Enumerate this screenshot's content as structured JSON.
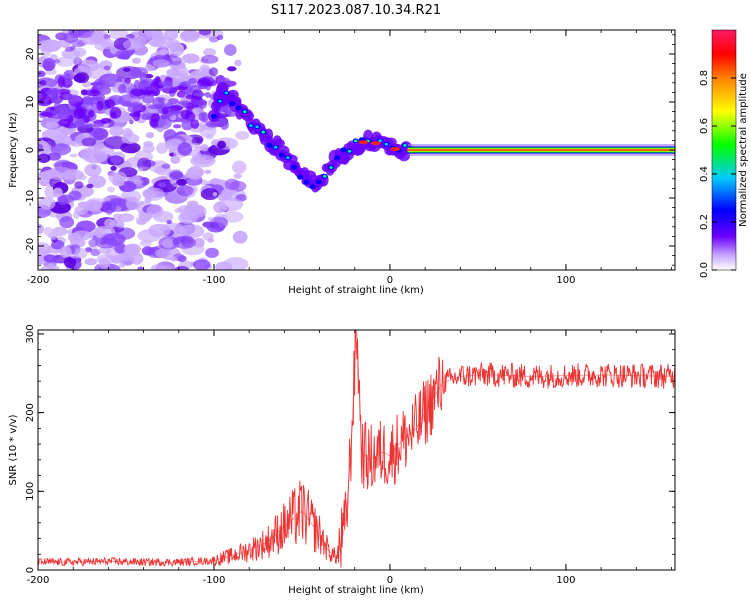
{
  "title": "S117.2023.087.10.34.R21",
  "chart_data": [
    {
      "type": "heatmap",
      "xlabel": "Height of straight line (km)",
      "ylabel": "Frequency (Hz)",
      "xlim": [
        -200,
        162
      ],
      "ylim": [
        -25,
        25
      ],
      "xticks": [
        -200,
        -100,
        0,
        100
      ],
      "yticks": [
        -20,
        -10,
        0,
        10,
        20
      ],
      "grid": false,
      "colorbar": {
        "label": "Normalized spectral amplitude",
        "range": [
          0,
          1
        ],
        "ticks": [
          "0.0",
          "0.2",
          "0.4",
          "0.6",
          "0.8"
        ],
        "colors": [
          "#ffffff",
          "#c9a8ff",
          "#6a00ff",
          "#0000ff",
          "#00c8ff",
          "#00ff00",
          "#ffff00",
          "#ff8000",
          "#ff0000",
          "#ff1a66"
        ]
      },
      "features": {
        "track": [
          {
            "x": -100,
            "y": 8
          },
          {
            "x": -95,
            "y": 12
          },
          {
            "x": -88,
            "y": 10
          },
          {
            "x": -80,
            "y": 6
          },
          {
            "x": -72,
            "y": 3
          },
          {
            "x": -62,
            "y": 0
          },
          {
            "x": -55,
            "y": -3
          },
          {
            "x": -48,
            "y": -6
          },
          {
            "x": -42,
            "y": -7
          },
          {
            "x": -35,
            "y": -4
          },
          {
            "x": -28,
            "y": -1
          },
          {
            "x": -20,
            "y": 1
          },
          {
            "x": -12,
            "y": 2
          },
          {
            "x": -5,
            "y": 1
          },
          {
            "x": 5,
            "y": 0
          },
          {
            "x": 10,
            "y": 0
          }
        ],
        "carrier": {
          "x_start": 10,
          "x_end": 162,
          "y": 0
        }
      }
    },
    {
      "type": "line",
      "xlabel": "Height of straight line (km)",
      "ylabel": "SNR (10 * v/v)",
      "xlim": [
        -200,
        162
      ],
      "ylim": [
        0,
        305
      ],
      "xticks": [
        -200,
        -100,
        0,
        100
      ],
      "yticks": [
        0,
        100,
        200,
        300
      ],
      "grid": false,
      "color": "#ee3333",
      "series": [
        {
          "x": [
            -200,
            -180,
            -160,
            -140,
            -120,
            -100,
            -90,
            -80,
            -70,
            -60,
            -50,
            -45,
            -40,
            -35,
            -30,
            -25,
            -22,
            -19,
            -16,
            -12,
            -8,
            -4,
            0,
            5,
            10,
            15,
            20,
            25,
            30,
            35,
            40,
            50,
            60,
            80,
            100,
            120,
            140,
            162
          ],
          "y": [
            10,
            10,
            11,
            10,
            10,
            12,
            18,
            25,
            35,
            55,
            75,
            60,
            45,
            25,
            15,
            60,
            160,
            310,
            150,
            140,
            145,
            150,
            145,
            160,
            170,
            180,
            200,
            220,
            238,
            242,
            246,
            248,
            248,
            246,
            247,
            248,
            247,
            246
          ]
        }
      ]
    }
  ]
}
